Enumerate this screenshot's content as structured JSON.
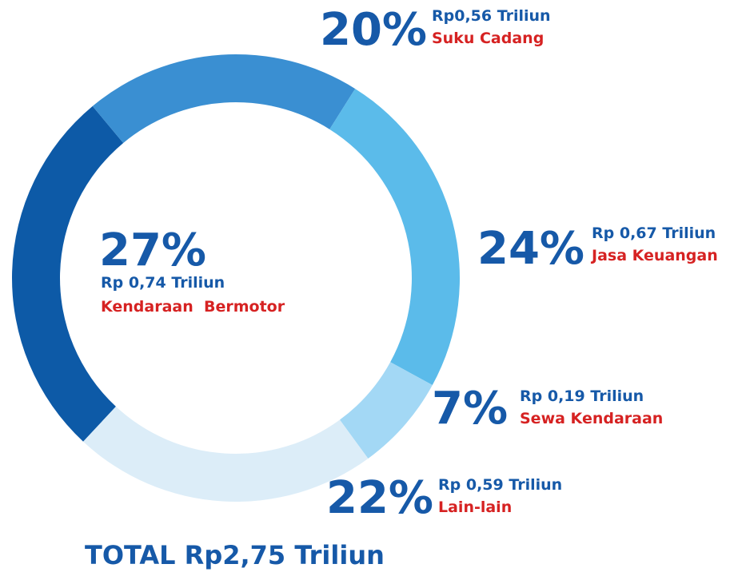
{
  "chart_data": {
    "type": "donut",
    "categories": [
      "Kendaraan  Bermotor",
      "Suku Cadang",
      "Jasa Keuangan",
      "Sewa Kendaraan",
      "Lain-lain"
    ],
    "values": [
      27,
      20,
      24,
      7,
      22
    ],
    "value_labels": [
      "27%",
      "20%",
      "24%",
      "7%",
      "22%"
    ],
    "amounts": [
      "Rp 0,74 Triliun",
      "Rp0,56 Triliun",
      "Rp 0,67 Triliun",
      "Rp 0,19 Triliun",
      "Rp 0,59 Triliun"
    ],
    "colors": [
      "#0d5aa7",
      "#3a8fd2",
      "#5bbbea",
      "#a3d8f5",
      "#dcedf8"
    ],
    "total": "TOTAL Rp2,75 Triliun"
  }
}
